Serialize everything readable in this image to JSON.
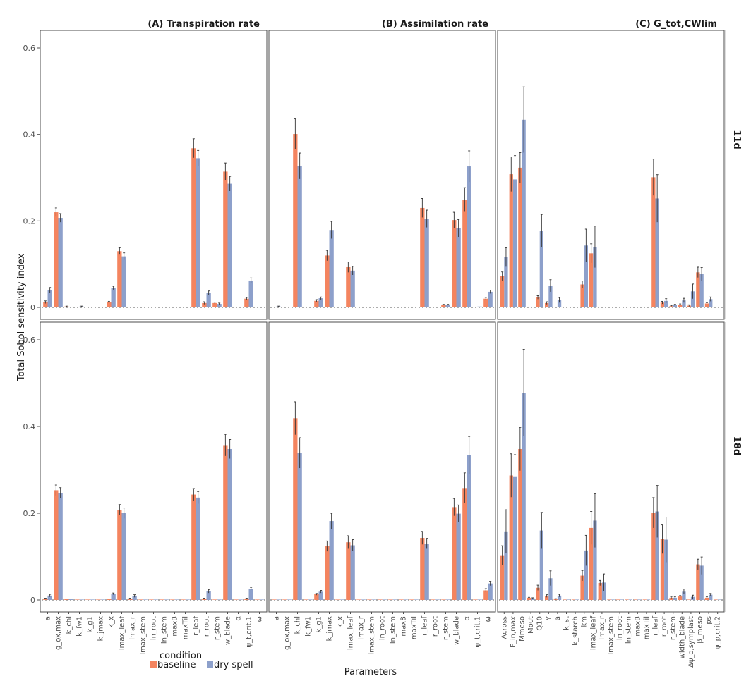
{
  "chart_data": {
    "type": "bar",
    "ylabel": "Total Sobol sensitivity index",
    "xlabel": "Parameters",
    "ylim": [
      0,
      0.65
    ],
    "yticks": [
      0,
      0.2,
      0.4,
      0.6
    ],
    "ytick_labels": [
      "0",
      "0.2",
      "0.4",
      "0.6"
    ],
    "legend": {
      "title": "condition",
      "placement": "bottom-left",
      "entries": [
        {
          "label": "baseline",
          "color": "#f4845f"
        },
        {
          "label": "dry spell",
          "color": "#8da0cb"
        }
      ]
    },
    "rows": [
      {
        "label": "11d"
      },
      {
        "label": "18d"
      }
    ],
    "panels": [
      {
        "title": "(A) Transpiration rate",
        "categories": [
          "a",
          "g_ox,max",
          "k_chl",
          "k_fw1",
          "k_g1",
          "k_jmax",
          "k_x",
          "lmax_leaf",
          "lmax_r",
          "lmax_stem",
          "ln_root",
          "ln_stem",
          "maxB",
          "maxTil",
          "r_leaf",
          "r_root",
          "r_stem",
          "w_blade",
          "α",
          "ψ_t,crit,1",
          "ω"
        ],
        "data": [
          {
            "row": "11d",
            "series": [
              {
                "name": "baseline",
                "values": [
                  0.012,
                  0.22,
                  0.002,
                  0.001,
                  0.0,
                  0.0,
                  0.012,
                  0.13,
                  0.0,
                  0.0,
                  0.0,
                  0.001,
                  0.0,
                  0.0,
                  0.368,
                  0.01,
                  0.01,
                  0.314,
                  0.001,
                  0.02,
                  0.0
                ],
                "err": [
                  0.003,
                  0.01,
                  0.001,
                  0.0,
                  0.0,
                  0.0,
                  0.002,
                  0.008,
                  0.0,
                  0.0,
                  0.0,
                  0.0,
                  0.0,
                  0.0,
                  0.022,
                  0.003,
                  0.002,
                  0.02,
                  0.0,
                  0.003,
                  0.0
                ]
              },
              {
                "name": "dry spell",
                "values": [
                  0.04,
                  0.207,
                  0.001,
                  0.002,
                  0.001,
                  0.0,
                  0.045,
                  0.118,
                  0.0,
                  0.001,
                  0.0,
                  0.001,
                  0.0,
                  0.0,
                  0.345,
                  0.033,
                  0.008,
                  0.286,
                  0.001,
                  0.062,
                  0.0
                ],
                "err": [
                  0.006,
                  0.01,
                  0.0,
                  0.001,
                  0.0,
                  0.0,
                  0.004,
                  0.008,
                  0.0,
                  0.0,
                  0.0,
                  0.0,
                  0.0,
                  0.0,
                  0.018,
                  0.005,
                  0.002,
                  0.017,
                  0.0,
                  0.006,
                  0.0
                ]
              }
            ]
          },
          {
            "row": "18d",
            "series": [
              {
                "name": "baseline",
                "values": [
                  0.003,
                  0.253,
                  0.002,
                  0.001,
                  0.0,
                  0.0,
                  0.002,
                  0.208,
                  0.003,
                  0.001,
                  0.0,
                  0.001,
                  0.0,
                  0.0,
                  0.243,
                  0.003,
                  0.001,
                  0.357,
                  0.0,
                  0.003,
                  0.0
                ],
                "err": [
                  0.001,
                  0.012,
                  0.0,
                  0.0,
                  0.0,
                  0.0,
                  0.0,
                  0.012,
                  0.001,
                  0.0,
                  0.0,
                  0.0,
                  0.0,
                  0.0,
                  0.014,
                  0.001,
                  0.0,
                  0.025,
                  0.0,
                  0.001,
                  0.0
                ]
              },
              {
                "name": "dry spell",
                "values": [
                  0.01,
                  0.247,
                  0.002,
                  0.001,
                  0.0,
                  0.0,
                  0.014,
                  0.2,
                  0.009,
                  0.001,
                  0.0,
                  0.001,
                  0.0,
                  0.0,
                  0.236,
                  0.02,
                  0.001,
                  0.348,
                  0.0,
                  0.026,
                  0.0
                ],
                "err": [
                  0.003,
                  0.012,
                  0.0,
                  0.0,
                  0.0,
                  0.0,
                  0.002,
                  0.012,
                  0.003,
                  0.0,
                  0.0,
                  0.0,
                  0.0,
                  0.0,
                  0.014,
                  0.004,
                  0.0,
                  0.022,
                  0.0,
                  0.003,
                  0.0
                ]
              }
            ]
          }
        ]
      },
      {
        "title": "(B) Assimilation rate",
        "categories": [
          "a",
          "g_ox,max",
          "k_chl",
          "k_fw1",
          "k_g1",
          "k_jmax",
          "k_x",
          "lmax_leaf",
          "lmax_r",
          "lmax_stem",
          "ln_root",
          "ln_stem",
          "maxB",
          "maxTil",
          "r_leaf",
          "r_root",
          "r_stem",
          "w_blade",
          "α",
          "ψ_t,crit,1",
          "ω"
        ],
        "data": [
          {
            "row": "11d",
            "series": [
              {
                "name": "baseline",
                "values": [
                  0.0,
                  0.0,
                  0.401,
                  0.0,
                  0.015,
                  0.12,
                  0.0,
                  0.093,
                  0.0,
                  0.0,
                  0.0,
                  0.0,
                  0.0,
                  0.0,
                  0.23,
                  0.0,
                  0.006,
                  0.202,
                  0.249,
                  0.0,
                  0.02
                ],
                "err": [
                  0.0,
                  0.0,
                  0.035,
                  0.0,
                  0.003,
                  0.012,
                  0.0,
                  0.012,
                  0.0,
                  0.0,
                  0.0,
                  0.0,
                  0.0,
                  0.0,
                  0.022,
                  0.0,
                  0.001,
                  0.018,
                  0.028,
                  0.0,
                  0.003
                ]
              },
              {
                "name": "dry spell",
                "values": [
                  0.002,
                  0.0,
                  0.327,
                  0.0,
                  0.021,
                  0.179,
                  0.001,
                  0.085,
                  0.0,
                  0.0,
                  0.0,
                  0.0,
                  0.0,
                  0.0,
                  0.205,
                  0.001,
                  0.006,
                  0.183,
                  0.326,
                  0.002,
                  0.036
                ],
                "err": [
                  0.001,
                  0.0,
                  0.03,
                  0.0,
                  0.003,
                  0.02,
                  0.0,
                  0.01,
                  0.0,
                  0.0,
                  0.0,
                  0.0,
                  0.0,
                  0.0,
                  0.02,
                  0.0,
                  0.001,
                  0.02,
                  0.036,
                  0.0,
                  0.004
                ]
              }
            ]
          },
          {
            "row": "18d",
            "series": [
              {
                "name": "baseline",
                "values": [
                  0.0,
                  0.0,
                  0.419,
                  0.0,
                  0.013,
                  0.124,
                  0.0,
                  0.133,
                  0.0,
                  0.0,
                  0.0,
                  0.0,
                  0.0,
                  0.0,
                  0.143,
                  0.0,
                  0.001,
                  0.214,
                  0.258,
                  0.0,
                  0.022
                ],
                "err": [
                  0.0,
                  0.0,
                  0.038,
                  0.0,
                  0.002,
                  0.012,
                  0.0,
                  0.015,
                  0.0,
                  0.0,
                  0.0,
                  0.0,
                  0.0,
                  0.0,
                  0.015,
                  0.0,
                  0.0,
                  0.02,
                  0.035,
                  0.0,
                  0.004
                ]
              },
              {
                "name": "dry spell",
                "values": [
                  0.0,
                  0.0,
                  0.339,
                  0.0,
                  0.019,
                  0.182,
                  0.0,
                  0.126,
                  0.0,
                  0.0,
                  0.0,
                  0.0,
                  0.0,
                  0.0,
                  0.13,
                  0.0,
                  0.001,
                  0.199,
                  0.334,
                  0.0,
                  0.038
                ],
                "err": [
                  0.0,
                  0.0,
                  0.035,
                  0.0,
                  0.003,
                  0.018,
                  0.0,
                  0.013,
                  0.0,
                  0.0,
                  0.0,
                  0.0,
                  0.0,
                  0.0,
                  0.012,
                  0.0,
                  0.0,
                  0.02,
                  0.043,
                  0.0,
                  0.005
                ]
              }
            ]
          }
        ]
      },
      {
        "title": "(C) G_tot,CWlim",
        "categories": [
          "Across",
          "F_in,max",
          "Mmeso",
          "Mout",
          "Q10",
          "Y",
          "a",
          "k_st",
          "k_starch",
          "km",
          "lmax_leaf",
          "lmax_r",
          "lmax_stem",
          "ln_root",
          "ln_stem",
          "maxB",
          "maxTil",
          "r_leaf",
          "r_root",
          "r_stem",
          "width_blade",
          "Δψ_o,symplast",
          "β_meso",
          "ps",
          "ψ_p,crit,2"
        ],
        "data": [
          {
            "row": "11d",
            "series": [
              {
                "name": "baseline",
                "values": [
                  0.072,
                  0.308,
                  0.323,
                  0.001,
                  0.023,
                  0.01,
                  0.0,
                  0.0,
                  0.0,
                  0.053,
                  0.125,
                  0.001,
                  0.0,
                  0.0,
                  0.0,
                  0.0,
                  0.0,
                  0.301,
                  0.011,
                  0.003,
                  0.006,
                  0.004,
                  0.081,
                  0.009,
                  0.0
                ],
                "err": [
                  0.01,
                  0.04,
                  0.035,
                  0.0,
                  0.004,
                  0.003,
                  0.0,
                  0.0,
                  0.0,
                  0.008,
                  0.022,
                  0.0,
                  0.0,
                  0.0,
                  0.0,
                  0.0,
                  0.0,
                  0.042,
                  0.003,
                  0.001,
                  0.002,
                  0.002,
                  0.012,
                  0.002,
                  0.0
                ]
              },
              {
                "name": "dry spell",
                "values": [
                  0.116,
                  0.296,
                  0.434,
                  0.001,
                  0.177,
                  0.05,
                  0.017,
                  0.001,
                  0.0,
                  0.143,
                  0.14,
                  0.0,
                  0.0,
                  0.001,
                  0.0,
                  0.0,
                  0.0,
                  0.252,
                  0.015,
                  0.005,
                  0.016,
                  0.037,
                  0.077,
                  0.019,
                  0.0
                ],
                "err": [
                  0.022,
                  0.055,
                  0.076,
                  0.0,
                  0.038,
                  0.014,
                  0.006,
                  0.0,
                  0.0,
                  0.038,
                  0.048,
                  0.0,
                  0.0,
                  0.0,
                  0.0,
                  0.0,
                  0.0,
                  0.055,
                  0.005,
                  0.002,
                  0.005,
                  0.017,
                  0.015,
                  0.005,
                  0.0
                ]
              }
            ]
          },
          {
            "row": "18d",
            "series": [
              {
                "name": "baseline",
                "values": [
                  0.103,
                  0.287,
                  0.348,
                  0.005,
                  0.028,
                  0.009,
                  0.002,
                  0.0,
                  0.0,
                  0.056,
                  0.166,
                  0.039,
                  0.001,
                  0.0,
                  0.0,
                  0.0,
                  0.0,
                  0.201,
                  0.14,
                  0.005,
                  0.008,
                  0.0,
                  0.082,
                  0.005,
                  0.0
                ],
                "err": [
                  0.022,
                  0.05,
                  0.05,
                  0.001,
                  0.006,
                  0.003,
                  0.001,
                  0.0,
                  0.0,
                  0.012,
                  0.038,
                  0.006,
                  0.0,
                  0.0,
                  0.0,
                  0.0,
                  0.0,
                  0.035,
                  0.033,
                  0.002,
                  0.002,
                  0.0,
                  0.012,
                  0.002,
                  0.0
                ],
                "zero_len": [
                  0,
                  0,
                  0,
                  0,
                  0,
                  0,
                  0,
                  0,
                  0,
                  0,
                  0,
                  0,
                  0,
                  0,
                  0,
                  0,
                  0,
                  0,
                  0,
                  0,
                  0,
                  0,
                  0,
                  0,
                  0
                ]
              },
              {
                "name": "dry spell",
                "values": [
                  0.158,
                  0.285,
                  0.478,
                  0.004,
                  0.16,
                  0.05,
                  0.01,
                  0.001,
                  0.0,
                  0.114,
                  0.183,
                  0.04,
                  0.0,
                  0.0,
                  0.0,
                  0.0,
                  0.0,
                  0.204,
                  0.139,
                  0.005,
                  0.019,
                  0.007,
                  0.079,
                  0.012,
                  0.0
                ],
                "err": [
                  0.05,
                  0.05,
                  0.1,
                  0.001,
                  0.042,
                  0.017,
                  0.003,
                  0.0,
                  0.0,
                  0.035,
                  0.062,
                  0.02,
                  0.0,
                  0.0,
                  0.0,
                  0.0,
                  0.0,
                  0.06,
                  0.052,
                  0.002,
                  0.006,
                  0.004,
                  0.02,
                  0.003,
                  0.0
                ]
              }
            ]
          }
        ]
      }
    ]
  }
}
